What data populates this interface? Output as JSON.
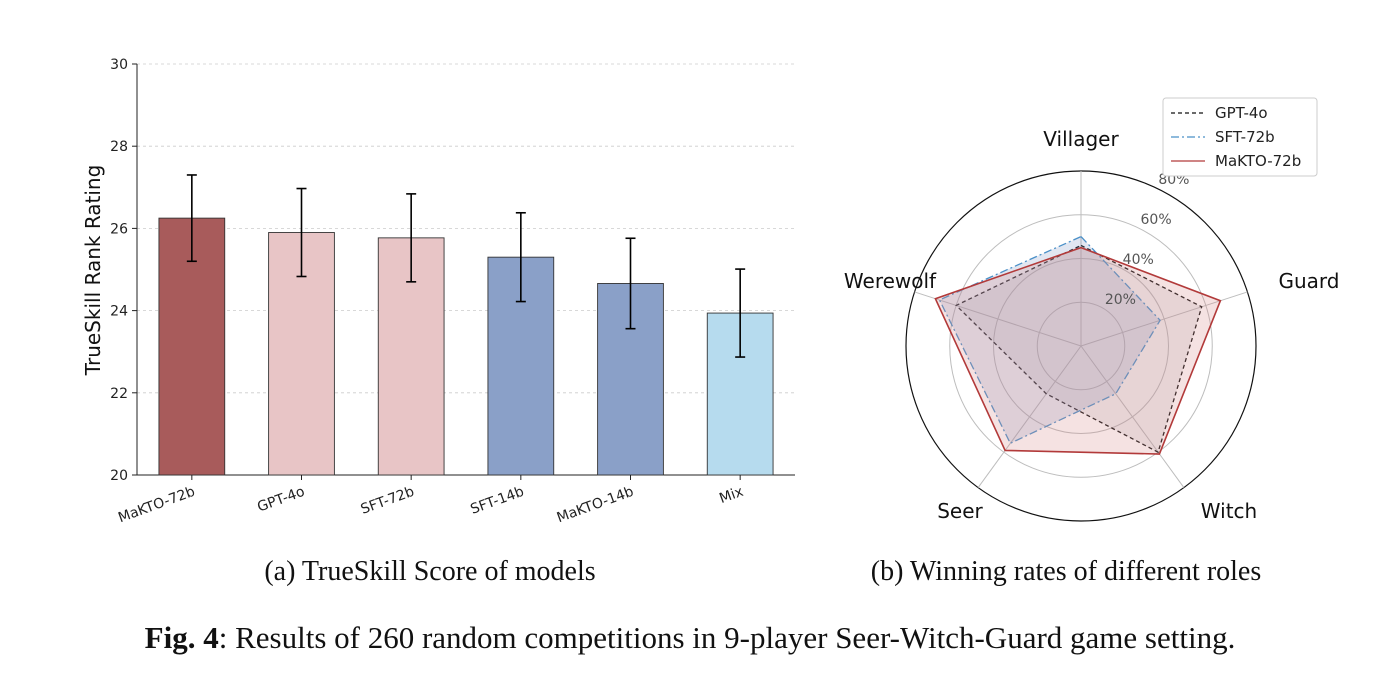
{
  "chart_data": [
    {
      "type": "bar",
      "ylabel": "TrueSkill Rank Rating",
      "categories": [
        "MaKTO-72b",
        "GPT-4o",
        "SFT-72b",
        "SFT-14b",
        "MaKTO-14b",
        "Mix"
      ],
      "values": [
        26.25,
        25.9,
        25.77,
        25.3,
        24.66,
        23.94
      ],
      "errors": [
        1.05,
        1.07,
        1.07,
        1.08,
        1.1,
        1.07
      ],
      "colors": [
        "#a85b5b",
        "#e8c5c6",
        "#e8c5c6",
        "#8aa0c8",
        "#8aa0c8",
        "#b6dbee"
      ],
      "ylim": [
        20,
        30
      ],
      "yticks": [
        "20",
        "22",
        "24",
        "26",
        "28",
        "30"
      ],
      "grid": true,
      "caption": "(a) TrueSkill Score of models"
    },
    {
      "type": "radar",
      "axes": [
        "Villager",
        "Guard",
        "Witch",
        "Seer",
        "Werewolf"
      ],
      "rlim": [
        0,
        80
      ],
      "rticks": [
        "20%",
        "40%",
        "60%",
        "80%"
      ],
      "series": [
        {
          "name": "GPT-4o",
          "values": [
            46,
            58,
            60,
            27,
            60
          ],
          "color": "#111111",
          "style": "dashed"
        },
        {
          "name": "SFT-72b",
          "values": [
            50,
            38,
            27,
            55,
            68
          ],
          "color": "#4a90c8",
          "style": "dashdot"
        },
        {
          "name": "MaKTO-72b",
          "values": [
            45,
            67,
            61,
            59,
            70
          ],
          "color": "#b23a3a",
          "style": "solid"
        }
      ],
      "legend_position": "top-right",
      "caption": "(b) Winning rates of different roles"
    }
  ],
  "figure_caption": {
    "label": "Fig. 4",
    "text": ": Results of 260 random competitions in 9-player Seer-Witch-Guard game setting."
  }
}
